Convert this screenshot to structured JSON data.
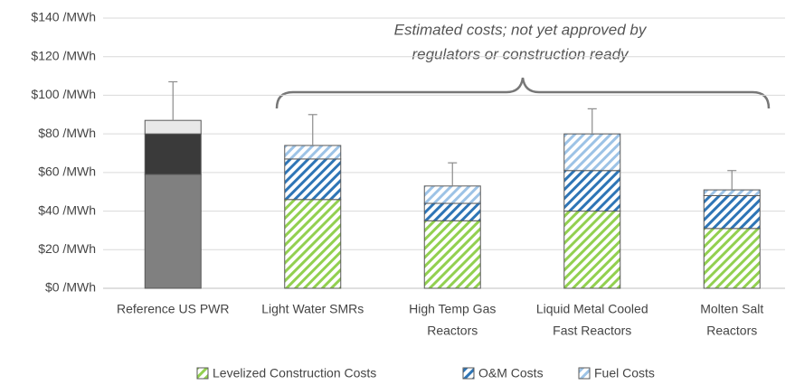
{
  "chart_data": {
    "type": "stacked_bar",
    "categories": [
      [
        "Reference US PWR"
      ],
      [
        "Light Water SMRs"
      ],
      [
        "High Temp Gas",
        "Reactors"
      ],
      [
        "Liquid Metal Cooled",
        "Fast Reactors"
      ],
      [
        "Molten Salt",
        "Reactors"
      ]
    ],
    "series": [
      {
        "name": "Levelized Construction Costs",
        "color": "#92d050",
        "point_colors": [
          "#808080",
          "#92d050",
          "#92d050",
          "#92d050",
          "#92d050"
        ],
        "values": [
          59,
          46,
          35,
          40,
          31
        ]
      },
      {
        "name": "O&M Costs",
        "color": "#2e75b6",
        "point_colors": [
          "#3a3a3a",
          "#2e75b6",
          "#2e75b6",
          "#2e75b6",
          "#2e75b6"
        ],
        "values": [
          21,
          21,
          9,
          21,
          17
        ]
      },
      {
        "name": "Fuel Costs",
        "color": "#9dc3e6",
        "point_colors": [
          "#e8e8e8",
          "#9dc3e6",
          "#9dc3e6",
          "#9dc3e6",
          "#9dc3e6"
        ],
        "values": [
          7,
          7,
          9,
          19,
          3
        ]
      }
    ],
    "hatched": [
      false,
      true,
      true,
      true,
      true
    ],
    "errors": [
      20,
      16,
      12,
      13,
      10
    ],
    "annotation": [
      "Estimated costs; not yet approved by",
      "regulators or construction ready"
    ],
    "ylim": [
      0,
      140
    ],
    "yticks": [
      {
        "value": 0,
        "label": "$0 /MWh"
      },
      {
        "value": 20,
        "label": "$20 /MWh"
      },
      {
        "value": 40,
        "label": "$40 /MWh"
      },
      {
        "value": 60,
        "label": "$60 /MWh"
      },
      {
        "value": 80,
        "label": "$80 /MWh"
      },
      {
        "value": 100,
        "label": "$100 /MWh"
      },
      {
        "value": 120,
        "label": "$120 /MWh"
      },
      {
        "value": 140,
        "label": "$140 /MWh"
      }
    ],
    "grid": true,
    "legend": "bottom"
  }
}
